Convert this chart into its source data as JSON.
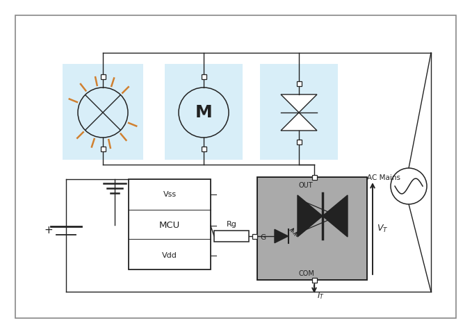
{
  "bg_color": "#ffffff",
  "border_color": "#666666",
  "light_blue": "#d8eef8",
  "gray_ic": "#aaaaaa",
  "orange": "#d08030",
  "black": "#222222",
  "ac_mains_label": "AC Mains",
  "out_label": "OUT",
  "com_label": "COM",
  "g_label": "G",
  "rg_label": "Rg",
  "vss_label": "Vss",
  "mcu_label": "MCU",
  "vdd_label": "Vdd",
  "vt_label": "$V_T$",
  "it_label": "$I_T$",
  "m_label": "M"
}
